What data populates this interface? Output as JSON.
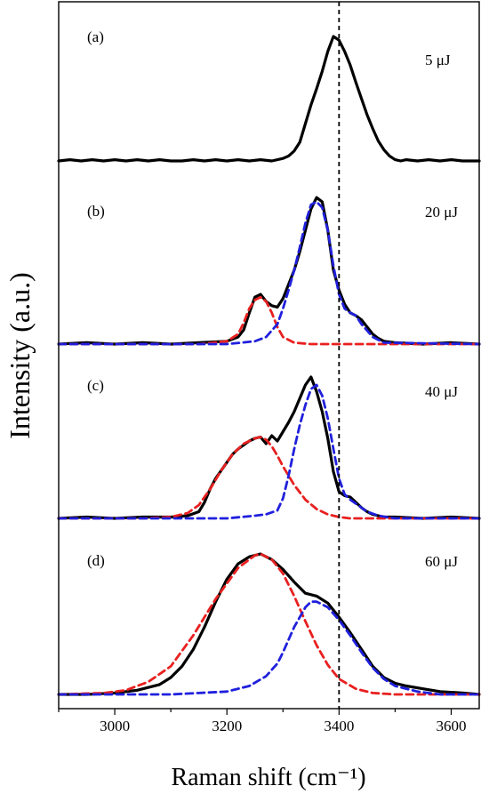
{
  "chart_data": {
    "type": "line",
    "xlabel": "Raman shift (cm⁻¹)",
    "ylabel": "Intensity (a.u.)",
    "xlim": [
      2900,
      3650
    ],
    "x_ticks": [
      3000,
      3200,
      3400,
      3600
    ],
    "reference_line_x": 3400,
    "colors": {
      "measured": "#000000",
      "component_low": "#e82020",
      "component_high": "#2020dd"
    },
    "panels": [
      {
        "label": "(a)",
        "energy": "5 μJ",
        "ylim": [
          0,
          1.08
        ],
        "series": [
          {
            "name": "",
            "style": "solid",
            "color": "#000000",
            "x": [
              2900,
              2920,
              2940,
              2960,
              2980,
              3000,
              3020,
              3040,
              3060,
              3080,
              3100,
              3120,
              3140,
              3160,
              3180,
              3200,
              3220,
              3240,
              3260,
              3280,
              3300,
              3310,
              3320,
              3330,
              3340,
              3350,
              3360,
              3370,
              3380,
              3390,
              3400,
              3410,
              3420,
              3430,
              3440,
              3450,
              3460,
              3470,
              3480,
              3490,
              3500,
              3510,
              3520,
              3540,
              3560,
              3580,
              3600,
              3620,
              3650
            ],
            "y": [
              0.0,
              0.01,
              0.0,
              0.01,
              0.0,
              0.01,
              0.0,
              0.01,
              0.0,
              0.01,
              0.0,
              0.0,
              0.01,
              0.0,
              0.01,
              0.0,
              0.01,
              0.0,
              0.01,
              0.0,
              0.02,
              0.04,
              0.08,
              0.15,
              0.3,
              0.45,
              0.58,
              0.72,
              0.88,
              1.0,
              0.97,
              0.88,
              0.77,
              0.63,
              0.5,
              0.37,
              0.26,
              0.16,
              0.09,
              0.04,
              0.01,
              0.0,
              0.01,
              0.0,
              0.01,
              0.0,
              0.01,
              0.0,
              0.0
            ]
          }
        ]
      },
      {
        "label": "(b)",
        "energy": "20 μJ",
        "ylim": [
          0,
          1.12
        ],
        "series": [
          {
            "name": "",
            "style": "solid",
            "color": "#000000",
            "x": [
              2900,
              2950,
              3000,
              3050,
              3100,
              3150,
              3200,
              3220,
              3230,
              3240,
              3250,
              3260,
              3270,
              3280,
              3290,
              3300,
              3310,
              3320,
              3330,
              3340,
              3350,
              3360,
              3370,
              3380,
              3390,
              3400,
              3410,
              3420,
              3430,
              3440,
              3450,
              3460,
              3470,
              3480,
              3500,
              3550,
              3600,
              3650
            ],
            "y": [
              0.0,
              0.01,
              0.0,
              0.01,
              0.0,
              0.01,
              0.02,
              0.05,
              0.1,
              0.22,
              0.33,
              0.35,
              0.3,
              0.27,
              0.26,
              0.32,
              0.42,
              0.52,
              0.65,
              0.8,
              0.95,
              1.03,
              1.0,
              0.8,
              0.52,
              0.38,
              0.28,
              0.22,
              0.2,
              0.17,
              0.12,
              0.07,
              0.04,
              0.02,
              0.01,
              0.0,
              0.01,
              0.0
            ]
          },
          {
            "name": "",
            "style": "dashed",
            "color": "#e82020",
            "x": [
              2900,
              3150,
              3200,
              3220,
              3230,
              3240,
              3250,
              3260,
              3270,
              3280,
              3290,
              3300,
              3320,
              3350,
              3400,
              3500,
              3650
            ],
            "y": [
              0.0,
              0.0,
              0.02,
              0.07,
              0.15,
              0.25,
              0.31,
              0.33,
              0.3,
              0.22,
              0.12,
              0.05,
              0.01,
              0.0,
              0.0,
              0.0,
              0.0
            ]
          },
          {
            "name": "",
            "style": "dashed",
            "color": "#2020dd",
            "x": [
              2900,
              3200,
              3250,
              3270,
              3290,
              3300,
              3310,
              3320,
              3330,
              3340,
              3350,
              3360,
              3370,
              3380,
              3390,
              3400,
              3410,
              3420,
              3430,
              3440,
              3460,
              3480,
              3650
            ],
            "y": [
              0.0,
              0.0,
              0.02,
              0.05,
              0.14,
              0.25,
              0.38,
              0.52,
              0.68,
              0.85,
              0.98,
              1.0,
              0.96,
              0.8,
              0.55,
              0.35,
              0.25,
              0.22,
              0.2,
              0.14,
              0.05,
              0.01,
              0.0
            ]
          }
        ]
      },
      {
        "label": "(c)",
        "energy": "40 μJ",
        "ylim": [
          0,
          1.12
        ],
        "series": [
          {
            "name": "",
            "style": "solid",
            "color": "#000000",
            "x": [
              2900,
              2950,
              3000,
              3050,
              3100,
              3130,
              3150,
              3160,
              3170,
              3180,
              3190,
              3200,
              3210,
              3220,
              3230,
              3240,
              3250,
              3260,
              3270,
              3280,
              3290,
              3300,
              3310,
              3320,
              3330,
              3340,
              3350,
              3360,
              3370,
              3380,
              3390,
              3400,
              3410,
              3420,
              3430,
              3440,
              3450,
              3460,
              3480,
              3500,
              3550,
              3600,
              3650
            ],
            "y": [
              0.0,
              0.01,
              0.0,
              0.01,
              0.01,
              0.02,
              0.05,
              0.12,
              0.22,
              0.3,
              0.36,
              0.42,
              0.48,
              0.52,
              0.55,
              0.58,
              0.6,
              0.61,
              0.56,
              0.62,
              0.58,
              0.65,
              0.72,
              0.8,
              0.9,
              1.0,
              1.06,
              0.95,
              0.8,
              0.6,
              0.35,
              0.2,
              0.17,
              0.16,
              0.12,
              0.08,
              0.05,
              0.03,
              0.01,
              0.01,
              0.0,
              0.01,
              0.0
            ]
          },
          {
            "name": "",
            "style": "dashed",
            "color": "#e82020",
            "x": [
              2900,
              3050,
              3100,
              3130,
              3150,
              3170,
              3190,
              3210,
              3230,
              3250,
              3260,
              3270,
              3280,
              3290,
              3300,
              3320,
              3340,
              3360,
              3380,
              3400,
              3420,
              3450,
              3500,
              3650
            ],
            "y": [
              0.0,
              0.0,
              0.01,
              0.04,
              0.1,
              0.22,
              0.36,
              0.48,
              0.56,
              0.6,
              0.61,
              0.59,
              0.54,
              0.47,
              0.39,
              0.25,
              0.14,
              0.07,
              0.03,
              0.01,
              0.0,
              0.0,
              0.0,
              0.0
            ]
          },
          {
            "name": "",
            "style": "dashed",
            "color": "#2020dd",
            "x": [
              2900,
              3100,
              3200,
              3250,
              3270,
              3290,
              3300,
              3310,
              3320,
              3330,
              3340,
              3350,
              3360,
              3370,
              3380,
              3390,
              3400,
              3410,
              3420,
              3430,
              3440,
              3450,
              3470,
              3500,
              3650
            ],
            "y": [
              0.0,
              0.0,
              0.0,
              0.02,
              0.03,
              0.06,
              0.15,
              0.32,
              0.52,
              0.7,
              0.85,
              0.97,
              1.0,
              0.92,
              0.75,
              0.52,
              0.3,
              0.18,
              0.14,
              0.11,
              0.08,
              0.05,
              0.02,
              0.0,
              0.0
            ]
          }
        ]
      },
      {
        "label": "(d)",
        "energy": "60 μJ",
        "ylim": [
          0,
          1.12
        ],
        "series": [
          {
            "name": "",
            "style": "solid",
            "color": "#000000",
            "x": [
              2900,
              2950,
              3000,
              3040,
              3080,
              3100,
              3120,
              3140,
              3160,
              3180,
              3200,
              3220,
              3240,
              3260,
              3280,
              3300,
              3320,
              3340,
              3360,
              3380,
              3400,
              3420,
              3440,
              3460,
              3480,
              3500,
              3520,
              3550,
              3580,
              3620,
              3650
            ],
            "y": [
              0.0,
              0.0,
              0.01,
              0.03,
              0.07,
              0.12,
              0.2,
              0.32,
              0.48,
              0.66,
              0.82,
              0.93,
              0.98,
              1.0,
              0.96,
              0.89,
              0.8,
              0.72,
              0.7,
              0.65,
              0.55,
              0.44,
              0.32,
              0.2,
              0.12,
              0.08,
              0.06,
              0.04,
              0.02,
              0.01,
              0.0
            ]
          },
          {
            "name": "",
            "style": "dashed",
            "color": "#e82020",
            "x": [
              2900,
              2980,
              3020,
              3060,
              3100,
              3140,
              3180,
              3220,
              3250,
              3260,
              3280,
              3300,
              3320,
              3340,
              3360,
              3380,
              3400,
              3430,
              3460,
              3500,
              3550,
              3650
            ],
            "y": [
              0.0,
              0.01,
              0.03,
              0.09,
              0.2,
              0.42,
              0.68,
              0.9,
              0.99,
              1.0,
              0.96,
              0.86,
              0.7,
              0.52,
              0.35,
              0.21,
              0.11,
              0.04,
              0.01,
              0.0,
              0.0,
              0.0
            ]
          },
          {
            "name": "",
            "style": "dashed",
            "color": "#2020dd",
            "x": [
              2900,
              3100,
              3200,
              3240,
              3270,
              3290,
              3300,
              3320,
              3340,
              3350,
              3360,
              3380,
              3400,
              3420,
              3440,
              3460,
              3480,
              3500,
              3540,
              3580,
              3650
            ],
            "y": [
              0.0,
              0.0,
              0.02,
              0.06,
              0.13,
              0.22,
              0.3,
              0.48,
              0.62,
              0.66,
              0.66,
              0.62,
              0.53,
              0.42,
              0.3,
              0.19,
              0.11,
              0.06,
              0.02,
              0.0,
              0.0
            ]
          }
        ]
      }
    ]
  }
}
